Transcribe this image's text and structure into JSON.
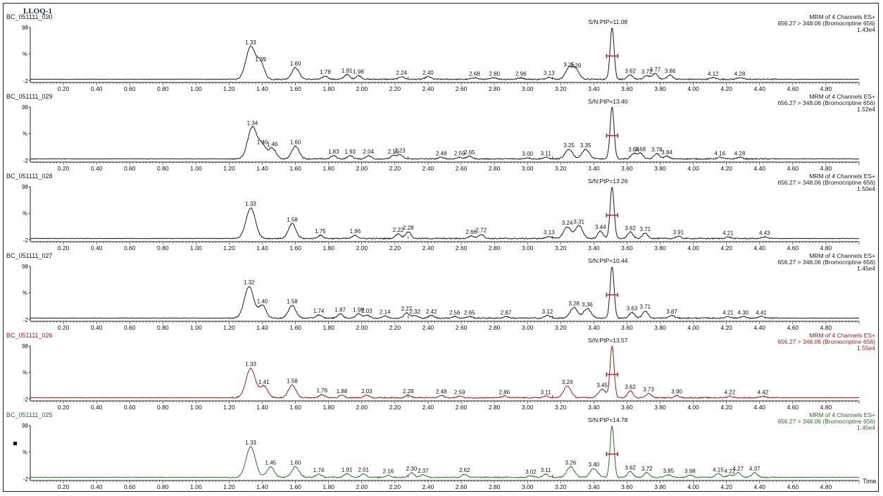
{
  "window": {
    "title": "LLOQ-1"
  },
  "colors": {
    "black": "#1a1a1a",
    "red": "#9a1e1e",
    "green": "#2e6b2e",
    "sn_marker": "#c0202a"
  },
  "chart_data": {
    "type": "line",
    "x_axis_label": "Time",
    "xlim": [
      0.0,
      5.0
    ],
    "x_ticks": [
      "0.20",
      "0.40",
      "0.60",
      "0.80",
      "1.00",
      "1.20",
      "1.40",
      "1.60",
      "1.80",
      "2.00",
      "2.20",
      "2.40",
      "2.60",
      "2.80",
      "3.00",
      "3.20",
      "3.40",
      "3.60",
      "3.80",
      "4.00",
      "4.20",
      "4.40",
      "4.60",
      "4.80"
    ],
    "y_ticks": [
      "98",
      "%",
      "-2"
    ],
    "ylim": [
      -2,
      98
    ],
    "channels": [
      {
        "sample": "BC_051111_030",
        "color": "black",
        "method": "MRM of 4 Channels ES+",
        "transition": "656.27 > 348.06 (Bromocriptine 656)",
        "intensity": "1.43e4",
        "sn_label": "S/N:PtP=11.08",
        "sn_time": 3.51,
        "peaks": [
          {
            "t": 1.33,
            "label": "1.33",
            "h": 62
          },
          {
            "t": 1.39,
            "label": "1.39",
            "h": 30
          },
          {
            "t": 1.6,
            "label": "1.60",
            "h": 22
          },
          {
            "t": 1.78,
            "label": "1.78",
            "h": 6
          },
          {
            "t": 1.91,
            "label": "1.91",
            "h": 9
          },
          {
            "t": 1.98,
            "label": "1.98",
            "h": 7
          },
          {
            "t": 2.24,
            "label": "2.24",
            "h": 5
          },
          {
            "t": 2.4,
            "label": "2.40",
            "h": 5
          },
          {
            "t": 2.68,
            "label": "2.68",
            "h": 3
          },
          {
            "t": 2.8,
            "label": "2.80",
            "h": 3
          },
          {
            "t": 2.96,
            "label": "2.96",
            "h": 3
          },
          {
            "t": 3.13,
            "label": "3.13",
            "h": 4
          },
          {
            "t": 3.25,
            "label": "3.25",
            "h": 20
          },
          {
            "t": 3.29,
            "label": "3.29",
            "h": 18
          },
          {
            "t": 3.62,
            "label": "3.62",
            "h": 8
          },
          {
            "t": 3.72,
            "label": "3.72",
            "h": 7
          },
          {
            "t": 3.77,
            "label": "3.77",
            "h": 11
          },
          {
            "t": 3.86,
            "label": "3.86",
            "h": 8
          },
          {
            "t": 4.12,
            "label": "4.12",
            "h": 3
          },
          {
            "t": 4.28,
            "label": "4.28",
            "h": 3
          }
        ]
      },
      {
        "sample": "BC_051111_029",
        "color": "black",
        "method": "MRM of 4 Channels ES+",
        "transition": "656.27 > 348.06 (Bromocriptine 656)",
        "intensity": "1.52e4",
        "sn_label": "S/N:PtP=13.40",
        "sn_time": 3.51,
        "peaks": [
          {
            "t": 1.34,
            "label": "1.34",
            "h": 60
          },
          {
            "t": 1.4,
            "label": "1.40",
            "h": 24
          },
          {
            "t": 1.46,
            "label": "1.46",
            "h": 20
          },
          {
            "t": 1.6,
            "label": "1.60",
            "h": 24
          },
          {
            "t": 1.83,
            "label": "1.83",
            "h": 6
          },
          {
            "t": 1.93,
            "label": "1.93",
            "h": 6
          },
          {
            "t": 2.04,
            "label": "2.04",
            "h": 6
          },
          {
            "t": 2.19,
            "label": "2.19",
            "h": 6
          },
          {
            "t": 2.23,
            "label": "2.23",
            "h": 8
          },
          {
            "t": 2.48,
            "label": "2.48",
            "h": 3
          },
          {
            "t": 2.59,
            "label": "2.59",
            "h": 3
          },
          {
            "t": 2.65,
            "label": "2.65",
            "h": 5
          },
          {
            "t": 3.0,
            "label": "3.00",
            "h": 2
          },
          {
            "t": 3.11,
            "label": "3.11",
            "h": 3
          },
          {
            "t": 3.25,
            "label": "3.25",
            "h": 18
          },
          {
            "t": 3.35,
            "label": "3.35",
            "h": 18
          },
          {
            "t": 3.64,
            "label": "3.64",
            "h": 10
          },
          {
            "t": 3.68,
            "label": "3.68",
            "h": 11
          },
          {
            "t": 3.78,
            "label": "3.78",
            "h": 10
          },
          {
            "t": 3.84,
            "label": "3.84",
            "h": 5
          },
          {
            "t": 4.16,
            "label": "4.16",
            "h": 3
          },
          {
            "t": 4.28,
            "label": "4.28",
            "h": 3
          }
        ]
      },
      {
        "sample": "BC_051111_028",
        "color": "black",
        "method": "MRM of 4 Channels ES+",
        "transition": "656.27 > 348.06 (Bromocriptine 656)",
        "intensity": "1.50e4",
        "sn_label": "S/N:PtP=13.26",
        "sn_time": 3.51,
        "peaks": [
          {
            "t": 1.33,
            "label": "1.33",
            "h": 58
          },
          {
            "t": 1.58,
            "label": "1.58",
            "h": 28
          },
          {
            "t": 1.75,
            "label": "1.75",
            "h": 6
          },
          {
            "t": 1.96,
            "label": "1.96",
            "h": 6
          },
          {
            "t": 2.22,
            "label": "2.22",
            "h": 9
          },
          {
            "t": 2.28,
            "label": "2.28",
            "h": 13
          },
          {
            "t": 2.66,
            "label": "2.66",
            "h": 5
          },
          {
            "t": 2.72,
            "label": "2.72",
            "h": 8
          },
          {
            "t": 3.13,
            "label": "3.13",
            "h": 4
          },
          {
            "t": 3.24,
            "label": "3.24",
            "h": 22
          },
          {
            "t": 3.31,
            "label": "3.31",
            "h": 24
          },
          {
            "t": 3.44,
            "label": "3.44",
            "h": 14
          },
          {
            "t": 3.62,
            "label": "3.62",
            "h": 12
          },
          {
            "t": 3.71,
            "label": "3.71",
            "h": 10
          },
          {
            "t": 3.91,
            "label": "3.91",
            "h": 4
          },
          {
            "t": 4.21,
            "label": "4.21",
            "h": 3
          },
          {
            "t": 4.43,
            "label": "4.43",
            "h": 3
          }
        ]
      },
      {
        "sample": "BC_051111_027",
        "color": "black",
        "method": "MRM of 4 Channels ES+",
        "transition": "656.27 > 348.06 (Bromocriptine 656)",
        "intensity": "1.45e4",
        "sn_label": "S/N:PtP=10.44",
        "sn_time": 3.51,
        "peaks": [
          {
            "t": 1.32,
            "label": "1.32",
            "h": 60
          },
          {
            "t": 1.4,
            "label": "1.40",
            "h": 24
          },
          {
            "t": 1.58,
            "label": "1.58",
            "h": 24
          },
          {
            "t": 1.74,
            "label": "1.74",
            "h": 6
          },
          {
            "t": 1.87,
            "label": "1.87",
            "h": 8
          },
          {
            "t": 1.98,
            "label": "1.98",
            "h": 8
          },
          {
            "t": 2.03,
            "label": "2.03",
            "h": 6
          },
          {
            "t": 2.14,
            "label": "2.14",
            "h": 4
          },
          {
            "t": 2.27,
            "label": "2.27",
            "h": 10
          },
          {
            "t": 2.32,
            "label": "2.32",
            "h": 5
          },
          {
            "t": 2.42,
            "label": "2.42",
            "h": 5
          },
          {
            "t": 2.56,
            "label": "2.56",
            "h": 3
          },
          {
            "t": 2.65,
            "label": "2.65",
            "h": 3
          },
          {
            "t": 2.87,
            "label": "2.87",
            "h": 3
          },
          {
            "t": 3.12,
            "label": "3.12",
            "h": 5
          },
          {
            "t": 3.28,
            "label": "3.28",
            "h": 20
          },
          {
            "t": 3.36,
            "label": "3.36",
            "h": 18
          },
          {
            "t": 3.63,
            "label": "3.63",
            "h": 11
          },
          {
            "t": 3.71,
            "label": "3.71",
            "h": 14
          },
          {
            "t": 3.87,
            "label": "3.87",
            "h": 5
          },
          {
            "t": 4.21,
            "label": "4.21",
            "h": 3
          },
          {
            "t": 4.3,
            "label": "4.30",
            "h": 3
          },
          {
            "t": 4.41,
            "label": "4.41",
            "h": 3
          }
        ]
      },
      {
        "sample": "BC_051111_026",
        "color": "red",
        "method": "MRM of 4 Channels ES+",
        "transition": "656.27 > 348.06 (Bromocriptine 656)",
        "intensity": "1.55e4",
        "sn_label": "S/N:PtP=13.57",
        "sn_time": 3.51,
        "peaks": [
          {
            "t": 1.33,
            "label": "1.33",
            "h": 56
          },
          {
            "t": 1.41,
            "label": "1.41",
            "h": 22
          },
          {
            "t": 1.58,
            "label": "1.58",
            "h": 24
          },
          {
            "t": 1.76,
            "label": "1.76",
            "h": 6
          },
          {
            "t": 1.88,
            "label": "1.88",
            "h": 5
          },
          {
            "t": 2.03,
            "label": "2.03",
            "h": 5
          },
          {
            "t": 2.28,
            "label": "2.28",
            "h": 5
          },
          {
            "t": 2.48,
            "label": "2.48",
            "h": 4
          },
          {
            "t": 2.59,
            "label": "2.59",
            "h": 3
          },
          {
            "t": 2.86,
            "label": "2.86",
            "h": 3
          },
          {
            "t": 3.11,
            "label": "3.11",
            "h": 3
          },
          {
            "t": 3.24,
            "label": "3.24",
            "h": 22
          },
          {
            "t": 3.45,
            "label": "3.45",
            "h": 16
          },
          {
            "t": 3.62,
            "label": "3.62",
            "h": 13
          },
          {
            "t": 3.73,
            "label": "3.73",
            "h": 8
          },
          {
            "t": 3.9,
            "label": "3.90",
            "h": 4
          },
          {
            "t": 4.22,
            "label": "4.22",
            "h": 3
          },
          {
            "t": 4.42,
            "label": "4.42",
            "h": 3
          }
        ]
      },
      {
        "sample": "BC_051111_025",
        "color": "green",
        "method": "MRM of 4 Channels ES+",
        "transition": "656.27 > 348.06 (Bromocriptine 656)",
        "intensity": "1.45e4",
        "sn_label": "S/N:PtP=14.78",
        "sn_time": 3.51,
        "peaks": [
          {
            "t": 1.33,
            "label": "1.33",
            "h": 58
          },
          {
            "t": 1.45,
            "label": "1.45",
            "h": 20
          },
          {
            "t": 1.6,
            "label": "1.60",
            "h": 20
          },
          {
            "t": 1.74,
            "label": "1.74",
            "h": 6
          },
          {
            "t": 1.91,
            "label": "1.91",
            "h": 7
          },
          {
            "t": 2.01,
            "label": "2.01",
            "h": 7
          },
          {
            "t": 2.16,
            "label": "2.16",
            "h": 4
          },
          {
            "t": 2.3,
            "label": "2.30",
            "h": 9
          },
          {
            "t": 2.37,
            "label": "2.37",
            "h": 5
          },
          {
            "t": 2.62,
            "label": "2.62",
            "h": 6
          },
          {
            "t": 3.02,
            "label": "3.02",
            "h": 3
          },
          {
            "t": 3.11,
            "label": "3.11",
            "h": 6
          },
          {
            "t": 3.26,
            "label": "3.26",
            "h": 20
          },
          {
            "t": 3.4,
            "label": "3.40",
            "h": 17
          },
          {
            "t": 3.62,
            "label": "3.62",
            "h": 11
          },
          {
            "t": 3.72,
            "label": "3.72",
            "h": 9
          },
          {
            "t": 3.85,
            "label": "3.85",
            "h": 5
          },
          {
            "t": 3.98,
            "label": "3.98",
            "h": 4
          },
          {
            "t": 4.15,
            "label": "4.15",
            "h": 7
          },
          {
            "t": 4.22,
            "label": "4.22",
            "h": 4
          },
          {
            "t": 4.27,
            "label": "4.27",
            "h": 9
          },
          {
            "t": 4.37,
            "label": "4.37",
            "h": 9
          }
        ]
      }
    ]
  }
}
